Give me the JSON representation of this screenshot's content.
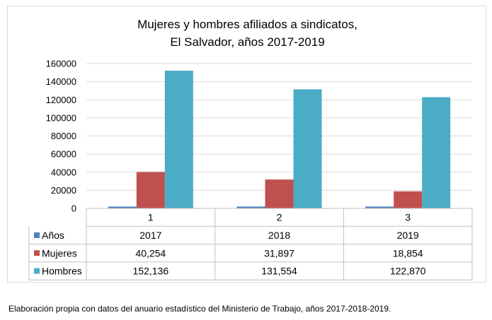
{
  "chart_data": {
    "type": "bar",
    "title": [
      "Mujeres y hombres afiliados a sindicatos,",
      "El Salvador, años 2017-2019"
    ],
    "categories": [
      "1",
      "2",
      "3"
    ],
    "series": [
      {
        "name": "Años",
        "values": [
          2017,
          2018,
          2019
        ],
        "labels": [
          "2017",
          "2018",
          "2019"
        ],
        "color": "#4f81bd"
      },
      {
        "name": "Mujeres",
        "values": [
          40254,
          31897,
          18854
        ],
        "labels": [
          "40,254",
          "31,897",
          "18,854"
        ],
        "color": "#c0504d"
      },
      {
        "name": "Hombres",
        "values": [
          152136,
          131554,
          122870
        ],
        "labels": [
          "152,136",
          "131,554",
          "122,870"
        ],
        "color": "#4bacc6"
      }
    ],
    "yticks": [
      "0",
      "20000",
      "40000",
      "60000",
      "80000",
      "100000",
      "120000",
      "140000",
      "160000"
    ],
    "ylim": [
      0,
      160000
    ],
    "grid": true,
    "legend": "data-table"
  },
  "caption": "Elaboración propia con datos del anuario estadístico del Ministerio de Trabajo, años 2017-2018-2019."
}
